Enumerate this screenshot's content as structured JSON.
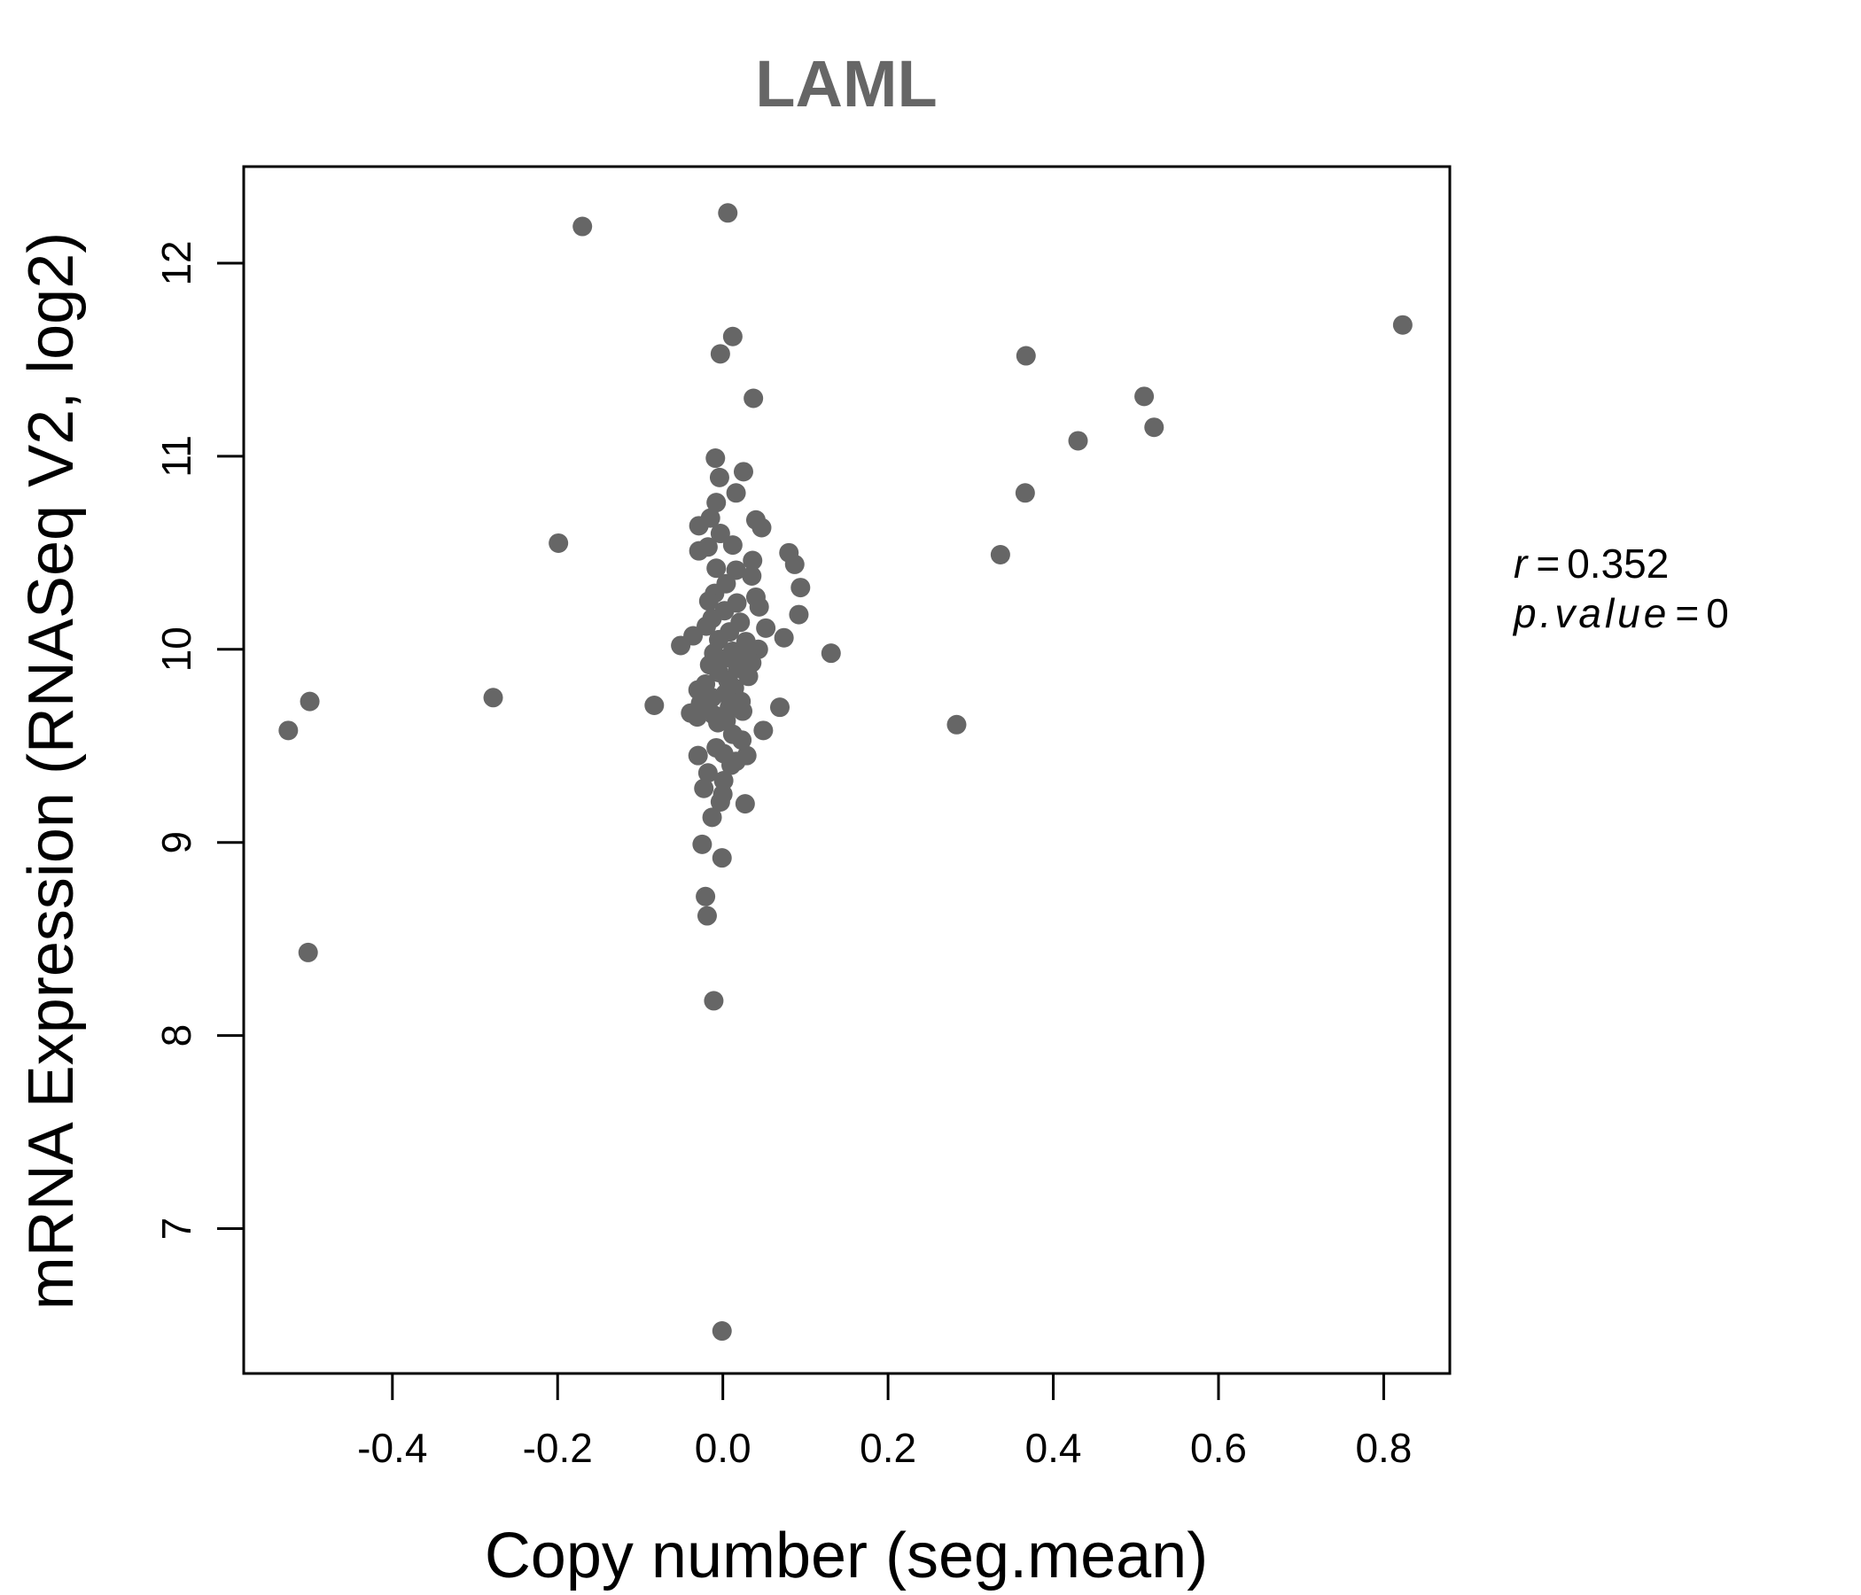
{
  "chart_data": {
    "type": "scatter",
    "title": "LAML",
    "xlabel": "Copy number (seg.mean)",
    "ylabel": "mRNA Expression (RNASeq V2, log2)",
    "xlim": [
      -0.58,
      0.88
    ],
    "ylim": [
      6.25,
      12.5
    ],
    "xticks": [
      -0.4,
      -0.2,
      0.0,
      0.2,
      0.4,
      0.6,
      0.8
    ],
    "xtick_labels": [
      "-0.4",
      "-0.2",
      "0.0",
      "0.2",
      "0.4",
      "0.6",
      "0.8"
    ],
    "yticks": [
      7,
      8,
      9,
      10,
      11,
      12
    ],
    "ytick_labels": [
      "7",
      "8",
      "9",
      "10",
      "11",
      "12"
    ],
    "grid": false,
    "point_color": "#666666",
    "stats": {
      "r_label": "r",
      "r_value": "0.352",
      "p_label": "p.value",
      "p_value": "0"
    },
    "points": [
      [
        -0.17,
        12.19
      ],
      [
        0.006,
        12.26
      ],
      [
        0.012,
        11.62
      ],
      [
        -0.003,
        11.53
      ],
      [
        0.037,
        11.3
      ],
      [
        0.823,
        11.68
      ],
      [
        0.367,
        11.52
      ],
      [
        0.51,
        11.31
      ],
      [
        0.522,
        11.15
      ],
      [
        0.43,
        11.08
      ],
      [
        0.366,
        10.81
      ],
      [
        0.336,
        10.49
      ],
      [
        0.283,
        9.61
      ],
      [
        0.131,
        9.98
      ],
      [
        -0.199,
        10.55
      ],
      [
        -0.278,
        9.75
      ],
      [
        -0.083,
        9.71
      ],
      [
        -0.5,
        9.73
      ],
      [
        -0.526,
        9.58
      ],
      [
        -0.502,
        8.43
      ],
      [
        -0.009,
        10.99
      ],
      [
        0.025,
        10.92
      ],
      [
        -0.004,
        10.89
      ],
      [
        0.016,
        10.81
      ],
      [
        -0.008,
        10.76
      ],
      [
        0.04,
        10.67
      ],
      [
        0.047,
        10.63
      ],
      [
        -0.015,
        10.68
      ],
      [
        -0.029,
        10.64
      ],
      [
        -0.003,
        10.6
      ],
      [
        0.012,
        10.54
      ],
      [
        -0.029,
        10.51
      ],
      [
        -0.018,
        10.53
      ],
      [
        0.08,
        10.5
      ],
      [
        0.087,
        10.44
      ],
      [
        0.036,
        10.46
      ],
      [
        -0.008,
        10.42
      ],
      [
        0.016,
        10.41
      ],
      [
        0.035,
        10.38
      ],
      [
        0.004,
        10.34
      ],
      [
        0.094,
        10.32
      ],
      [
        -0.01,
        10.29
      ],
      [
        0.04,
        10.27
      ],
      [
        -0.017,
        10.25
      ],
      [
        0.017,
        10.24
      ],
      [
        0.044,
        10.22
      ],
      [
        0.002,
        10.2
      ],
      [
        0.092,
        10.18
      ],
      [
        -0.013,
        10.16
      ],
      [
        0.021,
        10.14
      ],
      [
        -0.02,
        10.12
      ],
      [
        0.052,
        10.11
      ],
      [
        0.008,
        10.09
      ],
      [
        -0.036,
        10.07
      ],
      [
        0.074,
        10.06
      ],
      [
        -0.005,
        10.05
      ],
      [
        0.028,
        10.04
      ],
      [
        -0.051,
        10.02
      ],
      [
        0.043,
        10.0
      ],
      [
        0.012,
        9.99
      ],
      [
        -0.011,
        9.98
      ],
      [
        0.024,
        9.97
      ],
      [
        0.0,
        9.95
      ],
      [
        0.035,
        9.93
      ],
      [
        -0.016,
        9.92
      ],
      [
        0.018,
        9.9
      ],
      [
        -0.005,
        9.88
      ],
      [
        0.031,
        9.86
      ],
      [
        0.006,
        9.84
      ],
      [
        -0.021,
        9.82
      ],
      [
        0.014,
        9.8
      ],
      [
        -0.03,
        9.79
      ],
      [
        0.003,
        9.77
      ],
      [
        -0.013,
        9.75
      ],
      [
        0.022,
        9.73
      ],
      [
        -0.027,
        9.72
      ],
      [
        0.069,
        9.7
      ],
      [
        0.008,
        9.7
      ],
      [
        0.024,
        9.68
      ],
      [
        -0.039,
        9.67
      ],
      [
        -0.011,
        9.66
      ],
      [
        -0.031,
        9.65
      ],
      [
        0.004,
        9.63
      ],
      [
        -0.006,
        9.62
      ],
      [
        0.049,
        9.58
      ],
      [
        0.012,
        9.56
      ],
      [
        0.023,
        9.53
      ],
      [
        -0.008,
        9.49
      ],
      [
        0.001,
        9.46
      ],
      [
        0.029,
        9.45
      ],
      [
        -0.03,
        9.45
      ],
      [
        0.016,
        9.42
      ],
      [
        0.01,
        9.4
      ],
      [
        -0.018,
        9.36
      ],
      [
        0.001,
        9.32
      ],
      [
        -0.023,
        9.28
      ],
      [
        0.0,
        9.25
      ],
      [
        -0.003,
        9.21
      ],
      [
        0.027,
        9.2
      ],
      [
        -0.013,
        9.13
      ],
      [
        -0.025,
        8.99
      ],
      [
        -0.001,
        8.92
      ],
      [
        -0.021,
        8.72
      ],
      [
        -0.019,
        8.62
      ],
      [
        -0.011,
        8.18
      ],
      [
        -0.001,
        6.47
      ]
    ]
  }
}
